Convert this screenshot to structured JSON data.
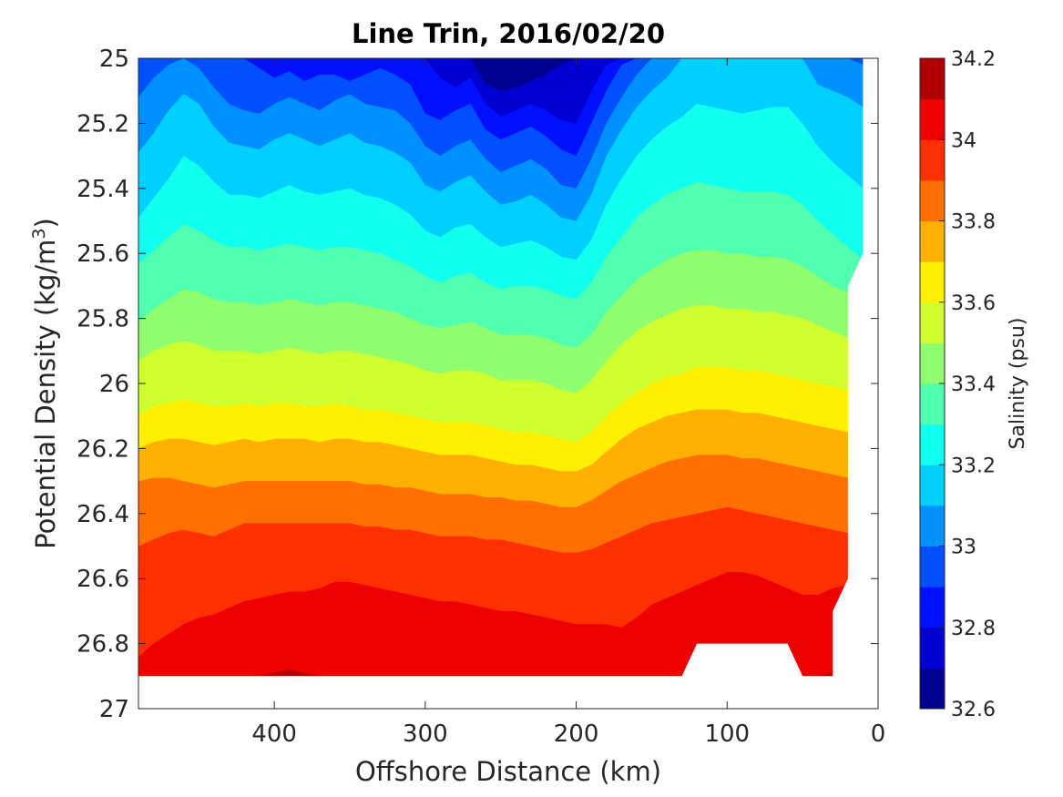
{
  "chart_data": {
    "type": "heatmap",
    "subtype": "filled-contour",
    "title": "Line Trin, 2016/02/20",
    "xlabel": "Offshore Distance (km)",
    "ylabel_main": "Potential Density (kg/m",
    "ylabel_sup": "3",
    "ylabel_close": ")",
    "x_axis": {
      "range": [
        490,
        0
      ],
      "reversed": true,
      "ticks": [
        400,
        300,
        200,
        100,
        0
      ],
      "tick_labels": [
        "400",
        "300",
        "200",
        "100",
        "0"
      ]
    },
    "y_axis": {
      "range": [
        25,
        27
      ],
      "reversed": true,
      "ticks": [
        25,
        25.2,
        25.4,
        25.6,
        25.8,
        26,
        26.2,
        26.4,
        26.6,
        26.8,
        27
      ],
      "tick_labels": [
        "25",
        "25.2",
        "25.4",
        "25.6",
        "25.8",
        "26",
        "26.2",
        "26.4",
        "26.6",
        "26.8",
        "27"
      ]
    },
    "colorbar": {
      "label": "Salinity (psu)",
      "range": [
        32.6,
        34.2
      ],
      "ticks": [
        32.6,
        32.8,
        33,
        33.2,
        33.4,
        33.6,
        33.8,
        34,
        34.2
      ],
      "tick_labels": [
        "32.6",
        "32.8",
        "33",
        "33.2",
        "33.4",
        "33.6",
        "33.8",
        "34",
        "34.2"
      ],
      "colors": [
        "#000090",
        "#0000D0",
        "#0010FF",
        "#0050FF",
        "#0090FF",
        "#00D0FF",
        "#10FFEF",
        "#50FFAF",
        "#90FF6F",
        "#D0FF2F",
        "#FFEF00",
        "#FFB000",
        "#FF7000",
        "#FF3000",
        "#EF0000",
        "#B00000"
      ]
    },
    "contour_x": [
      490,
      480,
      470,
      460,
      450,
      440,
      430,
      420,
      410,
      400,
      390,
      380,
      370,
      360,
      350,
      340,
      330,
      320,
      310,
      300,
      290,
      280,
      270,
      260,
      250,
      240,
      230,
      220,
      210,
      200,
      190,
      180,
      170,
      160,
      150,
      140,
      130,
      120,
      110,
      100,
      90,
      80,
      70,
      60,
      50,
      40,
      30,
      20,
      10
    ],
    "contours": [
      {
        "level": 32.7,
        "y": [
          25,
          25,
          25,
          25,
          25,
          25,
          25,
          25,
          25,
          25,
          25,
          25,
          25,
          25,
          25,
          25,
          25,
          25,
          25,
          25,
          25,
          25,
          25,
          25.08,
          25.1,
          25.09,
          25.07,
          25.05,
          25.02,
          25,
          25,
          25,
          25,
          25,
          25,
          25,
          25,
          25,
          25,
          25,
          25,
          25,
          25,
          25,
          25,
          25,
          25,
          25,
          25
        ]
      },
      {
        "level": 32.8,
        "y": [
          25,
          25,
          25,
          25,
          25,
          25,
          25,
          25,
          25,
          25,
          25,
          25,
          25,
          25,
          25,
          25,
          25,
          25,
          25,
          25,
          25.06,
          25.09,
          25.06,
          25.14,
          25.18,
          25.16,
          25.14,
          25.16,
          25.19,
          25.2,
          25.1,
          25.02,
          25,
          25,
          25,
          25,
          25,
          25,
          25,
          25,
          25,
          25,
          25,
          25,
          25,
          25,
          25,
          25,
          25
        ]
      },
      {
        "level": 32.9,
        "y": [
          25,
          25,
          25,
          25,
          25,
          25,
          25,
          25,
          25.03,
          25.06,
          25.04,
          25.07,
          25.05,
          25.05,
          25.07,
          25.05,
          25.03,
          25.05,
          25.08,
          25.17,
          25.19,
          25.16,
          25.14,
          25.22,
          25.25,
          25.23,
          25.21,
          25.24,
          25.28,
          25.3,
          25.2,
          25.1,
          25.02,
          25,
          25,
          25,
          25,
          25,
          25,
          25,
          25,
          25,
          25,
          25,
          25,
          25,
          25,
          25,
          25
        ]
      },
      {
        "level": 33.0,
        "y": [
          25.12,
          25.06,
          25.02,
          25,
          25.03,
          25.09,
          25.14,
          25.16,
          25.17,
          25.14,
          25.12,
          25.14,
          25.16,
          25.13,
          25.11,
          25.14,
          25.15,
          25.16,
          25.2,
          25.27,
          25.3,
          25.27,
          25.25,
          25.31,
          25.35,
          25.33,
          25.31,
          25.34,
          25.39,
          25.4,
          25.31,
          25.2,
          25.12,
          25.05,
          25,
          25,
          25,
          25,
          25,
          25,
          25,
          25,
          25,
          25,
          25,
          25,
          25,
          25,
          25.02
        ]
      },
      {
        "level": 33.1,
        "y": [
          25.29,
          25.23,
          25.16,
          25.11,
          25.14,
          25.21,
          25.26,
          25.27,
          25.28,
          25.25,
          25.23,
          25.25,
          25.27,
          25.25,
          25.23,
          25.26,
          25.27,
          25.29,
          25.32,
          25.39,
          25.41,
          25.38,
          25.36,
          25.41,
          25.45,
          25.44,
          25.42,
          25.45,
          25.49,
          25.5,
          25.42,
          25.3,
          25.22,
          25.15,
          25.1,
          25.06,
          25,
          25,
          25,
          25,
          25,
          25,
          25,
          25,
          25,
          25.08,
          25.1,
          25.12,
          25.15
        ]
      },
      {
        "level": 33.2,
        "y": [
          25.49,
          25.43,
          25.37,
          25.3,
          25.33,
          25.38,
          25.42,
          25.42,
          25.43,
          25.41,
          25.39,
          25.41,
          25.42,
          25.41,
          25.4,
          25.42,
          25.43,
          25.45,
          25.48,
          25.53,
          25.55,
          25.52,
          25.51,
          25.55,
          25.58,
          25.57,
          25.56,
          25.58,
          25.61,
          25.62,
          25.56,
          25.45,
          25.37,
          25.3,
          25.25,
          25.21,
          25.18,
          25.14,
          25.15,
          25.16,
          25.17,
          25.16,
          25.15,
          25.15,
          25.2,
          25.27,
          25.32,
          25.36,
          25.4
        ]
      },
      {
        "level": 33.3,
        "y": [
          25.63,
          25.59,
          25.55,
          25.51,
          25.53,
          25.56,
          25.58,
          25.58,
          25.59,
          25.58,
          25.57,
          25.58,
          25.59,
          25.58,
          25.58,
          25.59,
          25.6,
          25.62,
          25.64,
          25.67,
          25.69,
          25.67,
          25.66,
          25.69,
          25.71,
          25.7,
          25.7,
          25.71,
          25.73,
          25.74,
          25.69,
          25.61,
          25.55,
          25.49,
          25.45,
          25.42,
          25.4,
          25.38,
          25.39,
          25.4,
          25.41,
          25.41,
          25.41,
          25.42,
          25.45,
          25.5,
          25.54,
          25.58,
          25.62
        ]
      },
      {
        "level": 33.4,
        "y": [
          25.81,
          25.77,
          25.74,
          25.71,
          25.72,
          25.74,
          25.75,
          25.75,
          25.76,
          25.75,
          25.74,
          25.75,
          25.76,
          25.75,
          25.75,
          25.76,
          25.77,
          25.78,
          25.8,
          25.82,
          25.83,
          25.82,
          25.81,
          25.83,
          25.85,
          25.85,
          25.85,
          25.86,
          25.88,
          25.89,
          25.85,
          25.78,
          25.73,
          25.68,
          25.65,
          25.62,
          25.6,
          25.59,
          25.59,
          25.6,
          25.6,
          25.61,
          25.61,
          25.62,
          25.64,
          25.67,
          25.7,
          25.72,
          25.74
        ]
      },
      {
        "level": 33.5,
        "y": [
          25.93,
          25.9,
          25.88,
          25.87,
          25.88,
          25.9,
          25.9,
          25.9,
          25.91,
          25.9,
          25.89,
          25.9,
          25.91,
          25.9,
          25.9,
          25.91,
          25.92,
          25.93,
          25.94,
          25.96,
          25.97,
          25.96,
          25.96,
          25.97,
          25.99,
          25.99,
          25.99,
          26,
          26.02,
          26.03,
          25.99,
          25.93,
          25.88,
          25.84,
          25.81,
          25.79,
          25.77,
          25.76,
          25.76,
          25.77,
          25.77,
          25.78,
          25.78,
          25.79,
          25.8,
          25.82,
          25.84,
          25.86,
          25.88
        ]
      },
      {
        "level": 33.6,
        "y": [
          26.1,
          26.07,
          26.06,
          26.05,
          26.06,
          26.07,
          26.07,
          26.06,
          26.07,
          26.06,
          26.06,
          26.07,
          26.07,
          26.06,
          26.07,
          26.08,
          26.08,
          26.09,
          26.1,
          26.11,
          26.12,
          26.12,
          26.12,
          26.13,
          26.14,
          26.15,
          26.15,
          26.16,
          26.17,
          26.18,
          26.15,
          26.1,
          26.06,
          26.03,
          26,
          25.98,
          25.97,
          25.95,
          25.95,
          25.95,
          25.96,
          25.96,
          25.97,
          25.98,
          25.99,
          26,
          26.01,
          26.02,
          26.03
        ]
      },
      {
        "level": 33.7,
        "y": [
          26.2,
          26.18,
          26.17,
          26.17,
          26.18,
          26.19,
          26.18,
          26.17,
          26.18,
          26.17,
          26.17,
          26.17,
          26.18,
          26.17,
          26.17,
          26.18,
          26.18,
          26.19,
          26.2,
          26.21,
          26.22,
          26.22,
          26.22,
          26.23,
          26.24,
          26.25,
          26.25,
          26.26,
          26.27,
          26.27,
          26.25,
          26.21,
          26.17,
          26.14,
          26.12,
          26.1,
          26.09,
          26.08,
          26.08,
          26.08,
          26.09,
          26.09,
          26.1,
          26.11,
          26.12,
          26.13,
          26.14,
          26.15,
          26.16
        ]
      },
      {
        "level": 33.8,
        "y": [
          26.3,
          26.29,
          26.29,
          26.3,
          26.31,
          26.32,
          26.31,
          26.3,
          26.3,
          26.3,
          26.3,
          26.3,
          26.3,
          26.3,
          26.3,
          26.31,
          26.31,
          26.32,
          26.32,
          26.33,
          26.34,
          26.34,
          26.34,
          26.35,
          26.35,
          26.36,
          26.36,
          26.37,
          26.38,
          26.38,
          26.36,
          26.33,
          26.3,
          26.28,
          26.26,
          26.24,
          26.23,
          26.22,
          26.22,
          26.22,
          26.23,
          26.23,
          26.24,
          26.25,
          26.26,
          26.27,
          26.28,
          26.29,
          26.3
        ]
      },
      {
        "level": 33.9,
        "y": [
          26.5,
          26.48,
          26.46,
          26.45,
          26.46,
          26.47,
          26.45,
          26.43,
          26.43,
          26.43,
          26.43,
          26.43,
          26.43,
          26.43,
          26.43,
          26.44,
          26.44,
          26.45,
          26.45,
          26.46,
          26.47,
          26.47,
          26.47,
          26.48,
          26.48,
          26.49,
          26.5,
          26.51,
          26.52,
          26.52,
          26.51,
          26.49,
          26.47,
          26.45,
          26.43,
          26.42,
          26.41,
          26.4,
          26.39,
          26.38,
          26.39,
          26.4,
          26.41,
          26.42,
          26.43,
          26.44,
          26.45,
          26.46,
          26.47
        ]
      },
      {
        "level": 34.0,
        "y": [
          26.84,
          26.8,
          26.77,
          26.74,
          26.72,
          26.71,
          26.69,
          26.67,
          26.66,
          26.65,
          26.64,
          26.64,
          26.63,
          26.61,
          26.61,
          26.62,
          26.63,
          26.64,
          26.65,
          26.66,
          26.67,
          26.67,
          26.68,
          26.69,
          26.7,
          26.7,
          26.71,
          26.72,
          26.73,
          26.74,
          26.74,
          26.74,
          26.75,
          26.72,
          26.68,
          26.66,
          26.64,
          26.62,
          26.6,
          26.58,
          26.58,
          26.59,
          26.61,
          26.63,
          26.65,
          26.65,
          26.63,
          26.62,
          26.61
        ]
      },
      {
        "level": 34.1,
        "y": [
          26.9,
          26.9,
          26.9,
          26.9,
          26.9,
          26.9,
          26.9,
          26.9,
          26.9,
          26.89,
          26.88,
          26.89,
          26.9,
          26.9,
          26.9,
          26.9,
          26.9,
          26.9,
          26.9,
          26.9,
          26.9,
          26.9,
          26.9,
          26.9,
          26.9,
          26.9,
          26.9,
          26.9,
          26.9,
          26.9,
          26.9,
          26.9,
          26.9,
          26.9,
          26.9,
          26.9,
          26.9,
          26.9,
          26.9,
          26.9,
          26.9,
          26.9,
          26.9,
          26.9,
          26.9,
          26.9,
          26.89,
          26.9,
          26.9
        ]
      }
    ],
    "bottom_boundary": [
      [
        490,
        26.9
      ],
      [
        130,
        26.9
      ],
      [
        120,
        26.8
      ],
      [
        60,
        26.8
      ],
      [
        50,
        26.9
      ],
      [
        30,
        26.9
      ],
      [
        30,
        26.7
      ],
      [
        20,
        26.6
      ],
      [
        20,
        25.7
      ],
      [
        10,
        25.6
      ],
      [
        10,
        25
      ]
    ]
  }
}
